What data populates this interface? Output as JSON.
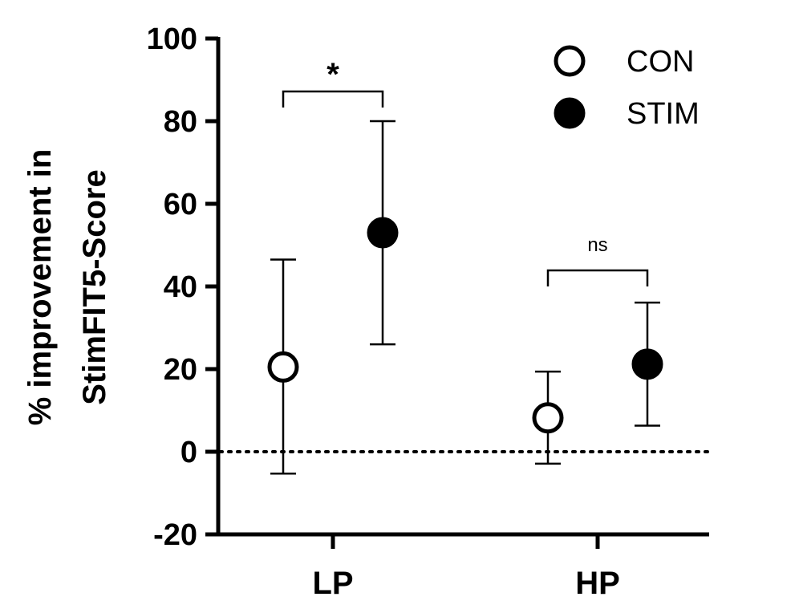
{
  "chart_data": {
    "type": "scatter",
    "title": "",
    "ylabel_lines": [
      "% improvement in",
      "StimFIT5-Score"
    ],
    "xlabel": "",
    "ylim": [
      -20,
      100
    ],
    "yticks": [
      -20,
      0,
      20,
      40,
      60,
      80,
      100
    ],
    "categories": [
      "LP",
      "HP"
    ],
    "reference_line": {
      "y": 0,
      "style": "dotted"
    },
    "series": [
      {
        "name": "CON",
        "marker": "open-circle",
        "color": "#000000",
        "values": [
          20.5,
          8.2
        ],
        "error_lower": [
          -5.3,
          -2.9
        ],
        "error_upper": [
          46.5,
          19.4
        ]
      },
      {
        "name": "STIM",
        "marker": "filled-circle",
        "color": "#000000",
        "values": [
          53.0,
          21.2
        ],
        "error_lower": [
          26.0,
          6.3
        ],
        "error_upper": [
          80.0,
          36.1
        ]
      }
    ],
    "significance": [
      {
        "category": "LP",
        "label": "*"
      },
      {
        "category": "HP",
        "label": "ns"
      }
    ],
    "legend": {
      "position": "top-right"
    },
    "grid": false
  }
}
